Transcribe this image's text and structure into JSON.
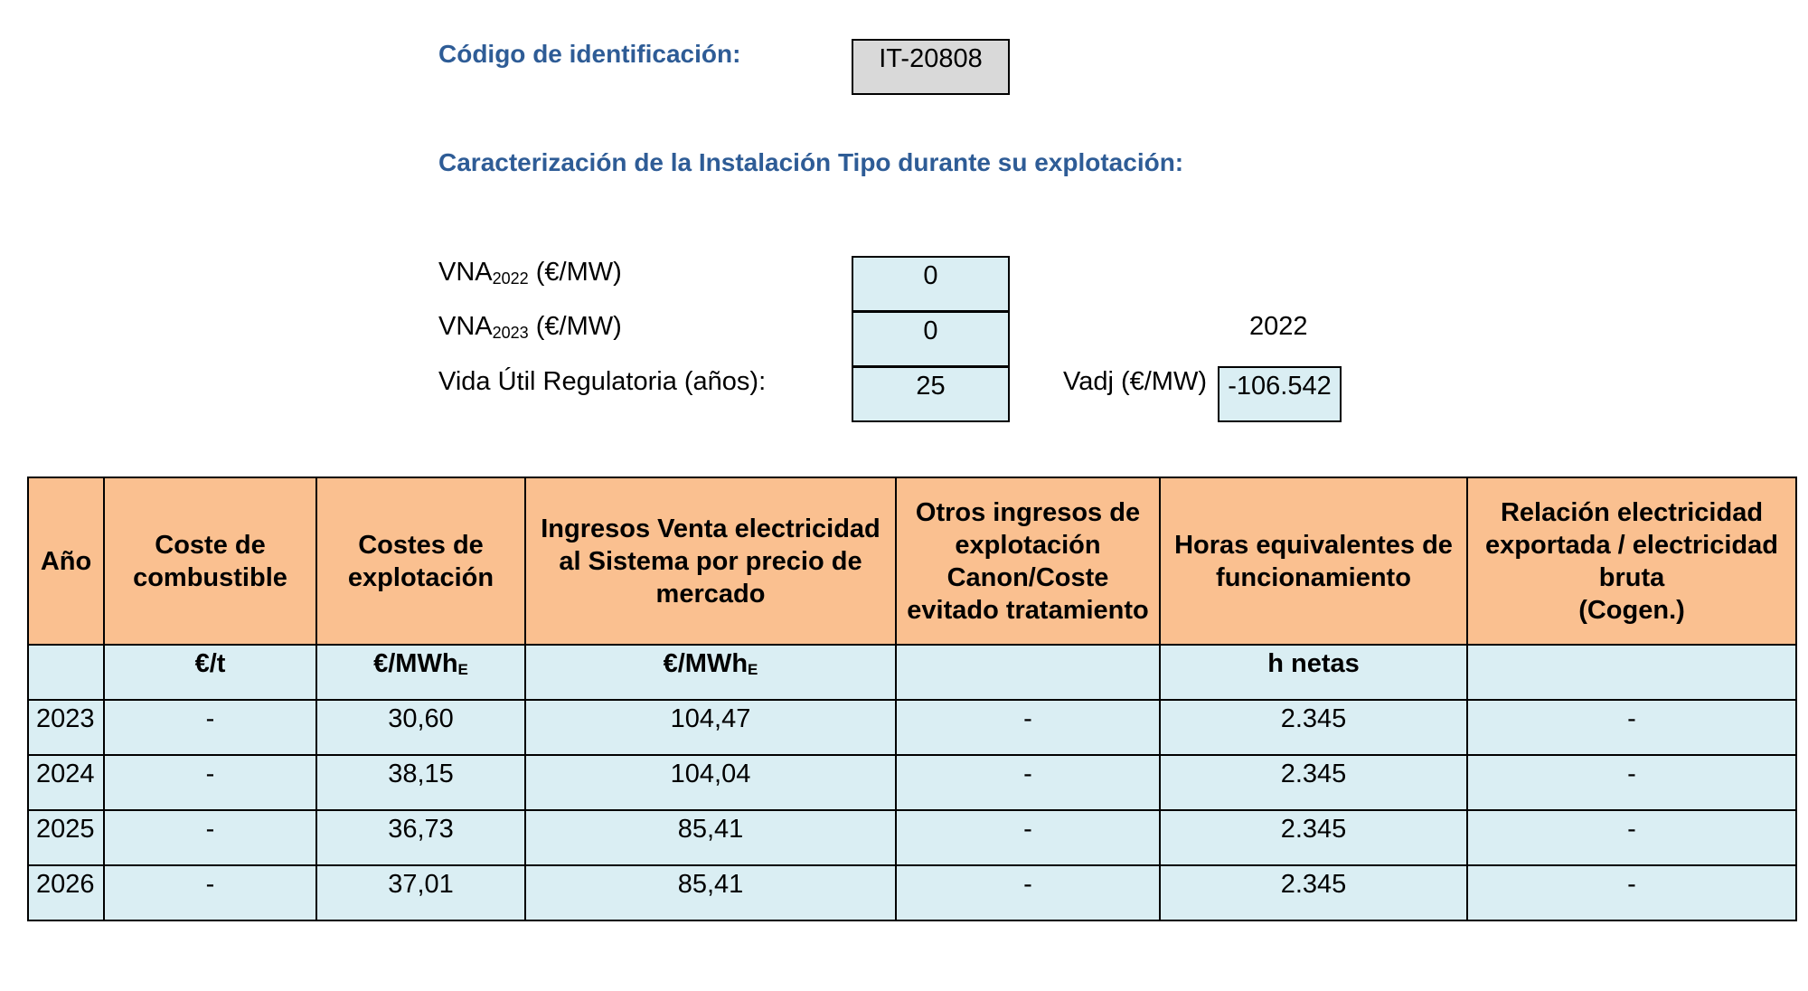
{
  "header": {
    "id_label": "Código de identificación:",
    "id_value": "IT-20808",
    "section_title": "Caracterización de la Instalación Tipo durante su explotación:"
  },
  "params": {
    "vna_2022": {
      "base": "VNA",
      "sub": "2022",
      "unit": " (€/MW)",
      "value": "0"
    },
    "vna_2023": {
      "base": "VNA",
      "sub": "2023",
      "unit": " (€/MW)",
      "value": "0"
    },
    "vida_util": {
      "label": "Vida Útil Regulatoria (años):",
      "value": "25"
    },
    "year_label": "2022",
    "vadj": {
      "label": "Vadj (€/MW)",
      "value": "-106.542"
    }
  },
  "table": {
    "headers": [
      "Año",
      "Coste de\ncombustible",
      "Costes de\nexplotación",
      "Ingresos Venta electricidad\nal Sistema por precio de\nmercado",
      "Otros ingresos de\nexplotación\nCanon/Coste\nevitado tratamiento",
      "Horas equivalentes de\nfuncionamiento",
      "Relación electricidad\nexportada / electricidad\nbruta\n(Cogen.)"
    ],
    "units": [
      {
        "base": "",
        "sub": ""
      },
      {
        "base": "€/t",
        "sub": ""
      },
      {
        "base": "€/MWh",
        "sub": "E"
      },
      {
        "base": "€/MWh",
        "sub": "E"
      },
      {
        "base": "",
        "sub": ""
      },
      {
        "base": "h netas",
        "sub": ""
      },
      {
        "base": "",
        "sub": ""
      }
    ],
    "rows": [
      [
        "2023",
        "-",
        "30,60",
        "104,47",
        "-",
        "2.345",
        "-"
      ],
      [
        "2024",
        "-",
        "38,15",
        "104,04",
        "-",
        "2.345",
        "-"
      ],
      [
        "2025",
        "-",
        "36,73",
        "85,41",
        "-",
        "2.345",
        "-"
      ],
      [
        "2026",
        "-",
        "37,01",
        "85,41",
        "-",
        "2.345",
        "-"
      ]
    ]
  },
  "colors": {
    "heading_blue": "#2e5c96",
    "header_orange": "#fac090",
    "cell_cyan": "#daeef3",
    "id_box_grey": "#d9d9d9"
  }
}
